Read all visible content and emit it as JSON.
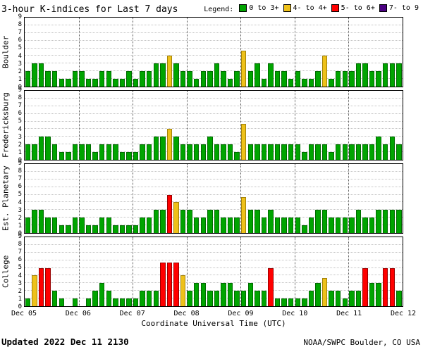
{
  "chart_data": {
    "type": "bar",
    "title": "3-hour K-indices for Last 7 days",
    "legend_label": "Legend:",
    "xlabel": "Coordinate Universal Time (UTC)",
    "x_ticks": [
      "Dec 05",
      "Dec 06",
      "Dec 07",
      "Dec 08",
      "Dec 09",
      "Dec 10",
      "Dec 11",
      "Dec 12"
    ],
    "y_ticks": [
      0,
      1,
      2,
      3,
      4,
      5,
      6,
      7,
      8,
      9
    ],
    "ylim": [
      0,
      9
    ],
    "days": 7,
    "slots_per_day": 8,
    "grid": "dotted",
    "legend_position": "top-right",
    "rules": [
      {
        "label": "0 to 3+",
        "max": 3.49,
        "fill": "#00A400",
        "edge": "#006B00"
      },
      {
        "label": "4- to 4+",
        "max": 4.84,
        "fill": "#EEC11A",
        "edge": "#A3820A"
      },
      {
        "label": "5- to 6+",
        "max": 6.84,
        "fill": "#FF0000",
        "edge": "#990000"
      },
      {
        "label": "7- to 9",
        "max": 9,
        "fill": "#4B0082",
        "edge": "#2E0050"
      }
    ],
    "series": [
      {
        "name": "Boulder",
        "values": [
          2,
          3,
          3,
          2,
          2,
          1,
          1,
          2,
          2,
          1,
          1,
          2,
          2,
          1,
          1,
          2,
          1,
          2,
          2,
          3,
          3,
          4,
          3,
          2,
          2,
          1,
          2,
          2,
          3,
          2,
          1,
          2,
          4.7,
          2,
          3,
          1,
          3,
          2,
          2,
          1,
          2,
          1,
          1,
          2,
          4,
          1,
          2,
          2,
          2,
          3,
          3,
          2,
          2,
          3,
          3,
          3
        ]
      },
      {
        "name": "Fredericksburg",
        "values": [
          2,
          2,
          3,
          3,
          2,
          1,
          1,
          2,
          2,
          2,
          1,
          2,
          2,
          2,
          1,
          1,
          1,
          2,
          2,
          3,
          3,
          4,
          3,
          2,
          2,
          2,
          2,
          3,
          2,
          2,
          2,
          1,
          4.7,
          2,
          2,
          2,
          2,
          2,
          2,
          2,
          2,
          1,
          2,
          2,
          2,
          1,
          2,
          2,
          2,
          2,
          2,
          2,
          3,
          2,
          3,
          2
        ]
      },
      {
        "name": "Est. Planetary",
        "values": [
          2,
          3,
          3,
          2,
          2,
          1,
          1,
          2,
          2,
          1,
          1,
          2,
          2,
          1,
          1,
          1,
          1,
          2,
          2,
          3,
          3,
          5,
          4,
          3,
          3,
          2,
          2,
          3,
          3,
          2,
          2,
          2,
          4.7,
          3,
          3,
          2,
          3,
          2,
          2,
          2,
          2,
          1,
          2,
          3,
          3,
          2,
          2,
          2,
          2,
          3,
          2,
          2,
          3,
          3,
          3,
          3
        ]
      },
      {
        "name": "College",
        "values": [
          1,
          4,
          5,
          5,
          2,
          1,
          0,
          1,
          0,
          1,
          2,
          3,
          2,
          1,
          1,
          1,
          1,
          2,
          2,
          2,
          5.7,
          5.7,
          5.7,
          4,
          2,
          3,
          3,
          2,
          2,
          3,
          3,
          2,
          2,
          3,
          2,
          2,
          5,
          1,
          1,
          1,
          1,
          1,
          2,
          3,
          3.7,
          2,
          2,
          1,
          2,
          2,
          5,
          3,
          3,
          5,
          5,
          2
        ]
      }
    ]
  },
  "footer": {
    "updated": "Updated 2022 Dec 11 2130",
    "credit": "NOAA/SWPC Boulder, CO USA"
  }
}
